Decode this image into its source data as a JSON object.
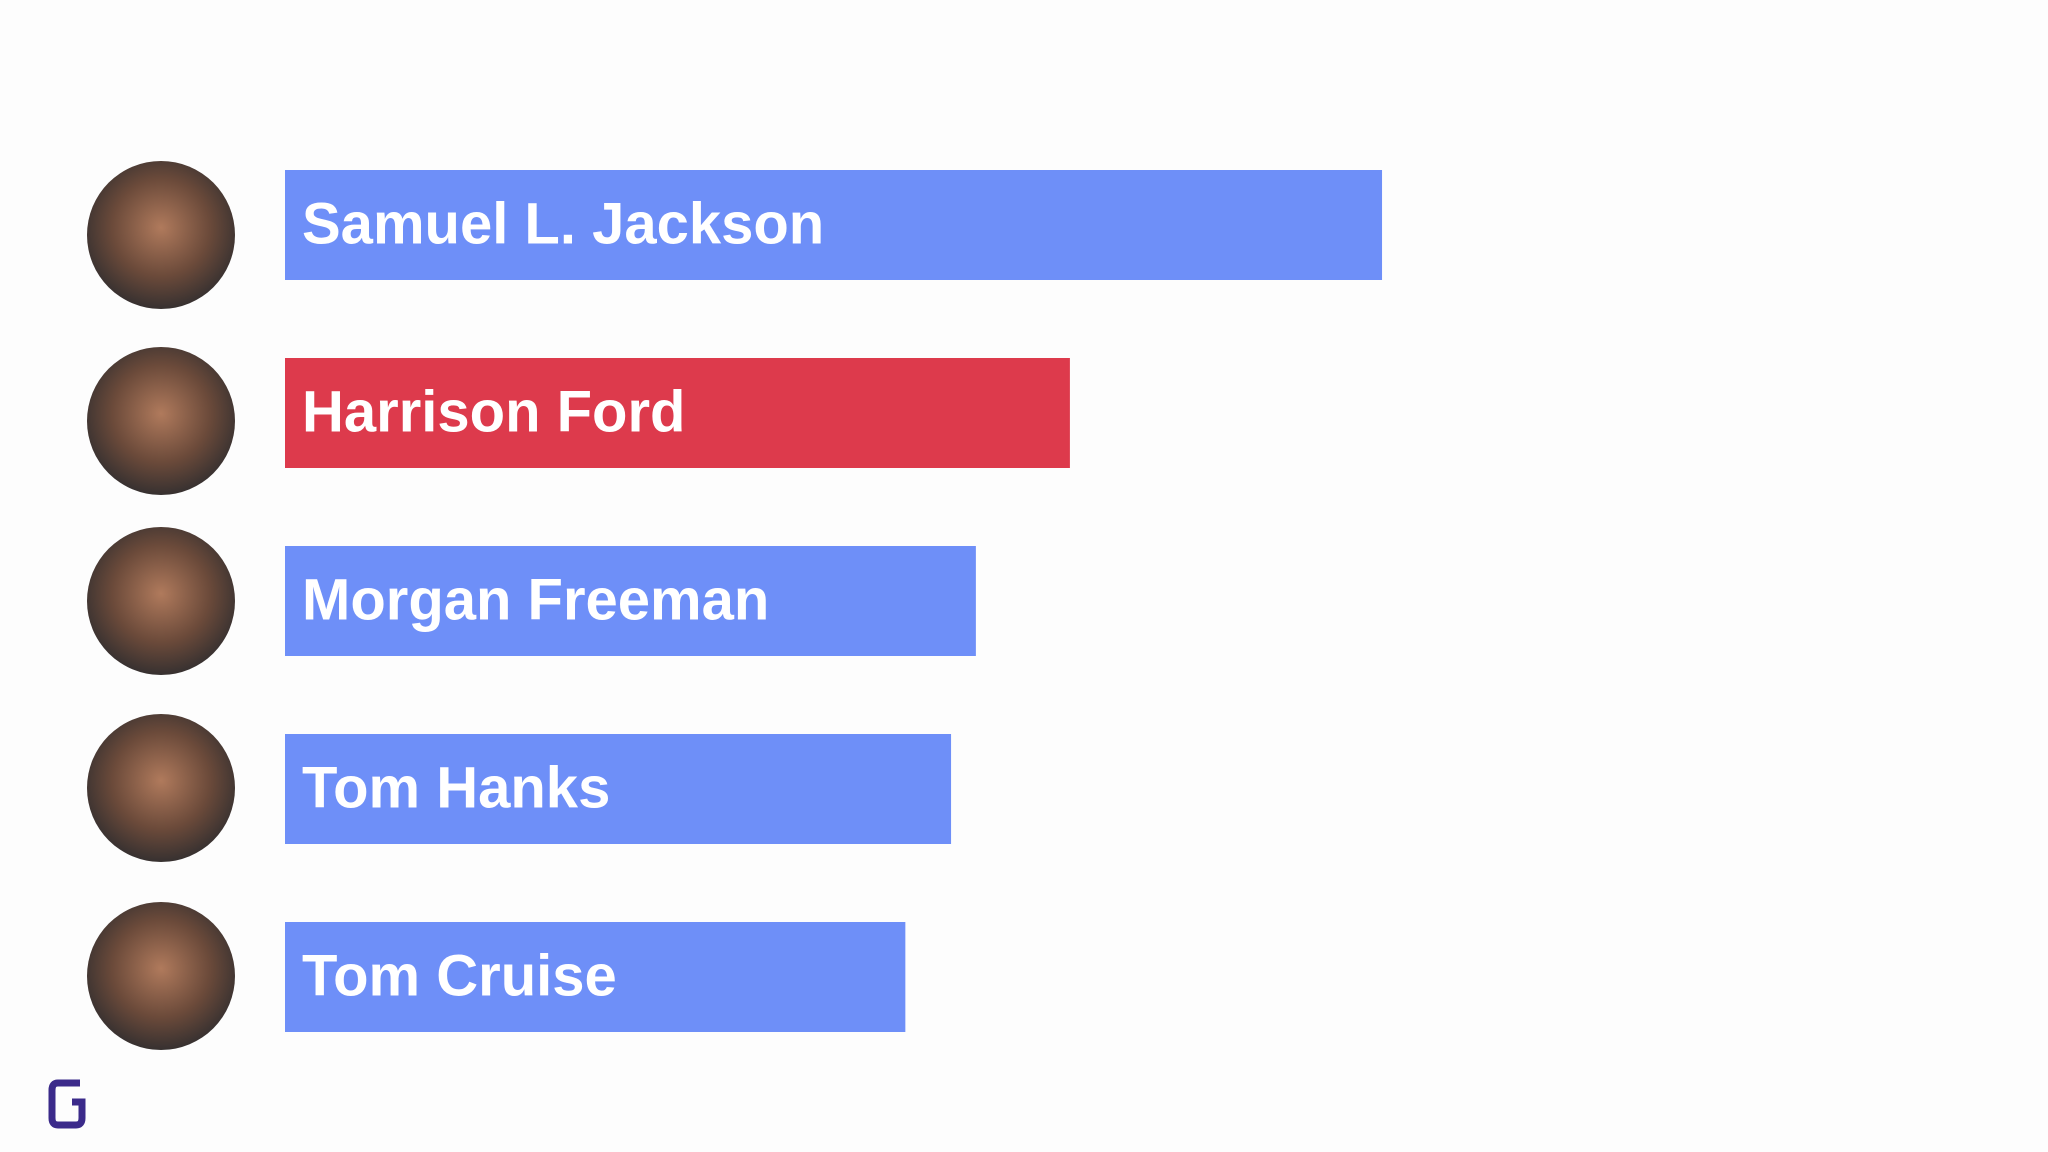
{
  "chart_data": {
    "type": "bar",
    "orientation": "horizontal",
    "categories": [
      "Samuel L. Jackson",
      "Harrison Ford",
      "Morgan Freeman",
      "Tom Hanks",
      "Tom Cruise"
    ],
    "values": [
      840,
      601,
      529,
      510,
      475
    ],
    "colors": [
      "#6e8ff8",
      "#dd3a4c",
      "#6e8ff8",
      "#6e8ff8",
      "#6e8ff8"
    ]
  }
}
